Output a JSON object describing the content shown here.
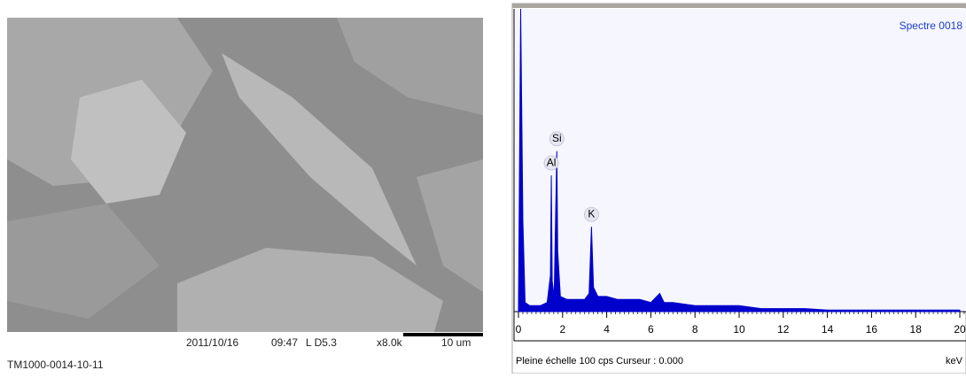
{
  "sem": {
    "date": "2011/10/16",
    "time": "09:47",
    "mode": "L D5.3",
    "magnification": "x8.0k",
    "scale": "10 um",
    "id": "TM1000-0014-10-11"
  },
  "chart_data": {
    "type": "area",
    "title": "Spectre 0018",
    "x_label": "keV",
    "footer": "Pleine échelle 100 cps  Curseur : 0.000",
    "color": "#0000cc",
    "xlim": [
      0,
      20
    ],
    "xticks": [
      0,
      2,
      4,
      6,
      8,
      10,
      12,
      14,
      16,
      18,
      20
    ],
    "ylim": [
      0,
      100
    ],
    "x": [
      0,
      0.1,
      0.2,
      0.3,
      0.5,
      1.0,
      1.3,
      1.45,
      1.49,
      1.53,
      1.62,
      1.74,
      1.78,
      1.9,
      2.2,
      2.5,
      3.0,
      3.2,
      3.31,
      3.4,
      3.6,
      4.0,
      4.5,
      5.0,
      5.5,
      6.0,
      6.4,
      6.6,
      7.0,
      8.0,
      9.0,
      10.0,
      11.0,
      12.0,
      13.0,
      14.0,
      16.0,
      18.0,
      20.0
    ],
    "values": [
      0,
      100,
      30,
      3,
      2,
      2,
      3,
      12,
      45,
      10,
      5,
      53,
      20,
      5,
      4,
      4,
      4,
      6,
      28,
      8,
      5,
      5,
      4,
      4,
      4,
      3,
      6,
      3,
      3,
      2,
      2,
      2,
      1,
      1,
      1,
      0.5,
      0.5,
      0.5,
      0.5
    ],
    "annotations": [
      {
        "text": "Al",
        "x": 1.49
      },
      {
        "text": "Si",
        "x": 1.74
      },
      {
        "text": "K",
        "x": 3.31
      }
    ]
  }
}
